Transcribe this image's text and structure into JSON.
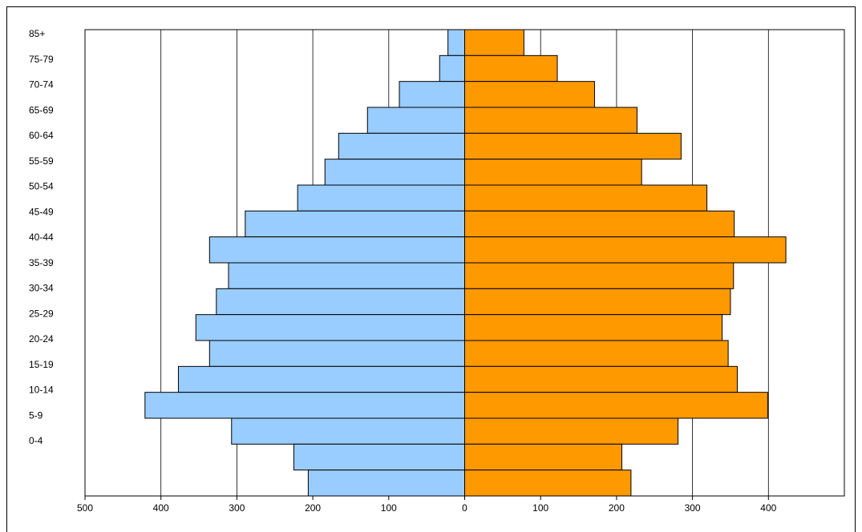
{
  "chart_data": {
    "type": "pyramid",
    "categories": [
      "85+",
      "75-79",
      "70-74",
      "65-69",
      "60-64",
      "55-59",
      "50-54",
      "45-49",
      "40-44",
      "35-39",
      "30-34",
      "25-29",
      "20-24",
      "15-19",
      "10-14",
      "5-9",
      "0-4",
      null
    ],
    "series": [
      {
        "color": "#99ccff",
        "values": [
          -22,
          -33,
          -86,
          -128,
          -166,
          -184,
          -220,
          -289,
          -336,
          -311,
          -327,
          -354,
          -336,
          -377,
          -421,
          -307,
          -225,
          -206
        ]
      },
      {
        "color": "#ff9900",
        "values": [
          78,
          122,
          171,
          227,
          285,
          233,
          319,
          355,
          423,
          354,
          350,
          339,
          347,
          359,
          399,
          281,
          207,
          219
        ]
      }
    ],
    "xlim": [
      -500,
      500
    ],
    "xticks": [
      {
        "value": -500,
        "label": "500"
      },
      {
        "value": -400,
        "label": "400"
      },
      {
        "value": -300,
        "label": "300"
      },
      {
        "value": -200,
        "label": "200"
      },
      {
        "value": -100,
        "label": "100"
      },
      0,
      100,
      200,
      300,
      400
    ],
    "grid": true
  }
}
